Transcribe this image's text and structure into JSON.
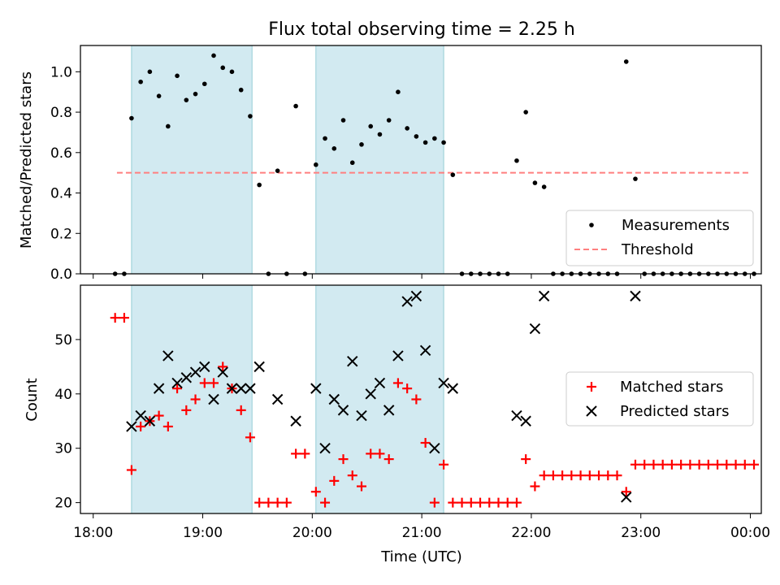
{
  "chart_data": [
    {
      "type": "scatter",
      "title": "Flux total observing time = 2.25 h",
      "xlabel": "",
      "ylabel": "Matched/Predicted stars",
      "xlim": [
        "17:53",
        "00:06"
      ],
      "ylim": [
        0,
        1.13
      ],
      "yticks": [
        "0.0",
        "0.2",
        "0.4",
        "0.6",
        "0.8",
        "1.0"
      ],
      "shaded_intervals": [
        [
          "18:21",
          "19:27"
        ],
        [
          "20:02",
          "21:12"
        ]
      ],
      "shade_color": "#add8e6",
      "legend": {
        "placement": "lower-right",
        "entries": [
          "Measurements",
          "Threshold"
        ]
      },
      "threshold": {
        "name": "Threshold",
        "value": 0.5,
        "x_start": "18:13",
        "x_end": "00:00",
        "color": "#ff7f7f",
        "style": "dashed"
      },
      "series": [
        {
          "name": "Measurements",
          "marker": "dot",
          "color": "#000000",
          "points": [
            [
              "18:12",
              0.0
            ],
            [
              "18:17",
              0.0
            ],
            [
              "18:21",
              0.77
            ],
            [
              "18:26",
              0.95
            ],
            [
              "18:31",
              1.0
            ],
            [
              "18:36",
              0.88
            ],
            [
              "18:41",
              0.73
            ],
            [
              "18:46",
              0.98
            ],
            [
              "18:51",
              0.86
            ],
            [
              "18:56",
              0.89
            ],
            [
              "19:01",
              0.94
            ],
            [
              "19:06",
              1.08
            ],
            [
              "19:11",
              1.02
            ],
            [
              "19:16",
              1.0
            ],
            [
              "19:21",
              0.91
            ],
            [
              "19:26",
              0.78
            ],
            [
              "19:31",
              0.44
            ],
            [
              "19:36",
              0.0
            ],
            [
              "19:41",
              0.51
            ],
            [
              "19:46",
              0.0
            ],
            [
              "19:51",
              0.83
            ],
            [
              "19:56",
              0.0
            ],
            [
              "20:02",
              0.54
            ],
            [
              "20:07",
              0.67
            ],
            [
              "20:12",
              0.62
            ],
            [
              "20:17",
              0.76
            ],
            [
              "20:22",
              0.55
            ],
            [
              "20:27",
              0.64
            ],
            [
              "20:32",
              0.73
            ],
            [
              "20:37",
              0.69
            ],
            [
              "20:42",
              0.76
            ],
            [
              "20:47",
              0.9
            ],
            [
              "20:52",
              0.72
            ],
            [
              "20:57",
              0.68
            ],
            [
              "21:02",
              0.65
            ],
            [
              "21:07",
              0.67
            ],
            [
              "21:12",
              0.65
            ],
            [
              "21:17",
              0.49
            ],
            [
              "21:22",
              0.0
            ],
            [
              "21:27",
              0.0
            ],
            [
              "21:32",
              0.0
            ],
            [
              "21:37",
              0.0
            ],
            [
              "21:42",
              0.0
            ],
            [
              "21:47",
              0.0
            ],
            [
              "21:52",
              0.56
            ],
            [
              "21:57",
              0.8
            ],
            [
              "22:02",
              0.45
            ],
            [
              "22:07",
              0.43
            ],
            [
              "22:12",
              0.0
            ],
            [
              "22:17",
              0.0
            ],
            [
              "22:22",
              0.0
            ],
            [
              "22:27",
              0.0
            ],
            [
              "22:32",
              0.0
            ],
            [
              "22:37",
              0.0
            ],
            [
              "22:42",
              0.0
            ],
            [
              "22:47",
              0.0
            ],
            [
              "22:52",
              1.05
            ],
            [
              "22:57",
              0.47
            ],
            [
              "23:02",
              0.0
            ],
            [
              "23:07",
              0.0
            ],
            [
              "23:12",
              0.0
            ],
            [
              "23:17",
              0.0
            ],
            [
              "23:22",
              0.0
            ],
            [
              "23:27",
              0.0
            ],
            [
              "23:32",
              0.0
            ],
            [
              "23:37",
              0.0
            ],
            [
              "23:42",
              0.0
            ],
            [
              "23:47",
              0.0
            ],
            [
              "23:52",
              0.0
            ],
            [
              "23:57",
              0.0
            ],
            [
              "00:02",
              0.0
            ]
          ]
        }
      ]
    },
    {
      "type": "scatter",
      "title": "",
      "xlabel": "Time (UTC)",
      "ylabel": "Count",
      "xlim": [
        "17:53",
        "00:06"
      ],
      "xticks": [
        "18:00",
        "19:00",
        "20:00",
        "21:00",
        "22:00",
        "23:00",
        "00:00"
      ],
      "ylim": [
        18,
        60
      ],
      "yticks": [
        "20",
        "30",
        "40",
        "50"
      ],
      "shaded_intervals": [
        [
          "18:21",
          "19:27"
        ],
        [
          "20:02",
          "21:12"
        ]
      ],
      "shade_color": "#add8e6",
      "legend": {
        "placement": "center-right",
        "entries": [
          "Matched stars",
          "Predicted stars"
        ]
      },
      "series": [
        {
          "name": "Matched stars",
          "marker": "plus",
          "color": "#ff0000",
          "points": [
            [
              "18:12",
              54
            ],
            [
              "18:17",
              54
            ],
            [
              "18:21",
              26
            ],
            [
              "18:26",
              34
            ],
            [
              "18:31",
              35
            ],
            [
              "18:36",
              36
            ],
            [
              "18:41",
              34
            ],
            [
              "18:46",
              41
            ],
            [
              "18:51",
              37
            ],
            [
              "18:56",
              39
            ],
            [
              "19:01",
              42
            ],
            [
              "19:06",
              42
            ],
            [
              "19:11",
              45
            ],
            [
              "19:16",
              41
            ],
            [
              "19:21",
              37
            ],
            [
              "19:26",
              32
            ],
            [
              "19:31",
              20
            ],
            [
              "19:36",
              20
            ],
            [
              "19:41",
              20
            ],
            [
              "19:46",
              20
            ],
            [
              "19:51",
              29
            ],
            [
              "19:56",
              29
            ],
            [
              "20:02",
              22
            ],
            [
              "20:07",
              20
            ],
            [
              "20:12",
              24
            ],
            [
              "20:17",
              28
            ],
            [
              "20:22",
              25
            ],
            [
              "20:27",
              23
            ],
            [
              "20:32",
              29
            ],
            [
              "20:37",
              29
            ],
            [
              "20:42",
              28
            ],
            [
              "20:47",
              42
            ],
            [
              "20:52",
              41
            ],
            [
              "20:57",
              39
            ],
            [
              "21:02",
              31
            ],
            [
              "21:07",
              20
            ],
            [
              "21:12",
              27
            ],
            [
              "21:17",
              20
            ],
            [
              "21:22",
              20
            ],
            [
              "21:27",
              20
            ],
            [
              "21:32",
              20
            ],
            [
              "21:37",
              20
            ],
            [
              "21:42",
              20
            ],
            [
              "21:47",
              20
            ],
            [
              "21:52",
              20
            ],
            [
              "21:57",
              28
            ],
            [
              "22:02",
              23
            ],
            [
              "22:07",
              25
            ],
            [
              "22:12",
              25
            ],
            [
              "22:17",
              25
            ],
            [
              "22:22",
              25
            ],
            [
              "22:27",
              25
            ],
            [
              "22:32",
              25
            ],
            [
              "22:37",
              25
            ],
            [
              "22:42",
              25
            ],
            [
              "22:47",
              25
            ],
            [
              "22:52",
              22
            ],
            [
              "22:57",
              27
            ],
            [
              "23:02",
              27
            ],
            [
              "23:07",
              27
            ],
            [
              "23:12",
              27
            ],
            [
              "23:17",
              27
            ],
            [
              "23:22",
              27
            ],
            [
              "23:27",
              27
            ],
            [
              "23:32",
              27
            ],
            [
              "23:37",
              27
            ],
            [
              "23:42",
              27
            ],
            [
              "23:47",
              27
            ],
            [
              "23:52",
              27
            ],
            [
              "23:57",
              27
            ],
            [
              "00:02",
              27
            ]
          ]
        },
        {
          "name": "Predicted stars",
          "marker": "x",
          "color": "#000000",
          "points": [
            [
              "18:21",
              34
            ],
            [
              "18:26",
              36
            ],
            [
              "18:31",
              35
            ],
            [
              "18:36",
              41
            ],
            [
              "18:41",
              47
            ],
            [
              "18:46",
              42
            ],
            [
              "18:51",
              43
            ],
            [
              "18:56",
              44
            ],
            [
              "19:01",
              45
            ],
            [
              "19:06",
              39
            ],
            [
              "19:11",
              44
            ],
            [
              "19:16",
              41
            ],
            [
              "19:21",
              41
            ],
            [
              "19:26",
              41
            ],
            [
              "19:31",
              45
            ],
            [
              "19:41",
              39
            ],
            [
              "19:51",
              35
            ],
            [
              "20:02",
              41
            ],
            [
              "20:07",
              30
            ],
            [
              "20:12",
              39
            ],
            [
              "20:17",
              37
            ],
            [
              "20:22",
              46
            ],
            [
              "20:27",
              36
            ],
            [
              "20:32",
              40
            ],
            [
              "20:37",
              42
            ],
            [
              "20:42",
              37
            ],
            [
              "20:47",
              47
            ],
            [
              "20:52",
              57
            ],
            [
              "20:57",
              58
            ],
            [
              "21:02",
              48
            ],
            [
              "21:07",
              30
            ],
            [
              "21:12",
              42
            ],
            [
              "21:17",
              41
            ],
            [
              "21:52",
              36
            ],
            [
              "21:57",
              35
            ],
            [
              "22:02",
              52
            ],
            [
              "22:07",
              58
            ],
            [
              "22:52",
              21
            ],
            [
              "22:57",
              58
            ]
          ]
        }
      ]
    }
  ]
}
